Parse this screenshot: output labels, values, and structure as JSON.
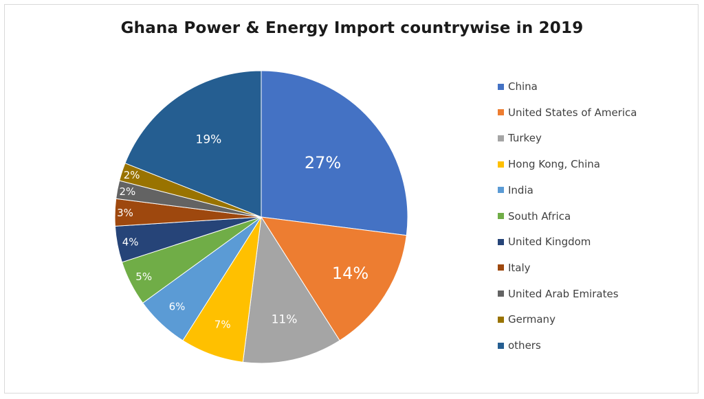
{
  "chart_data": {
    "type": "pie",
    "title": "Ghana Power & Energy Import countrywise in 2019",
    "slices": [
      {
        "label": "China",
        "value": 27,
        "display": "27%",
        "color": "#4472C4"
      },
      {
        "label": "United States of America",
        "value": 14,
        "display": "14%",
        "color": "#ED7D31"
      },
      {
        "label": "Turkey",
        "value": 11,
        "display": "11%",
        "color": "#A5A5A5"
      },
      {
        "label": "Hong Kong, China",
        "value": 7,
        "display": "7%",
        "color": "#FFC000"
      },
      {
        "label": "India",
        "value": 6,
        "display": "6%",
        "color": "#5B9BD5"
      },
      {
        "label": "South Africa",
        "value": 5,
        "display": "5%",
        "color": "#70AD47"
      },
      {
        "label": "United Kingdom",
        "value": 4,
        "display": "4%",
        "color": "#264478"
      },
      {
        "label": "Italy",
        "value": 3,
        "display": "3%",
        "color": "#9E480E"
      },
      {
        "label": "United Arab Emirates",
        "value": 2,
        "display": "2%",
        "color": "#636363"
      },
      {
        "label": "Germany",
        "value": 2,
        "display": "2%",
        "color": "#997300"
      },
      {
        "label": "others",
        "value": 19,
        "display": "19%",
        "color": "#255E91"
      }
    ],
    "legend_position": "right",
    "start": "12 o'clock, clockwise"
  }
}
